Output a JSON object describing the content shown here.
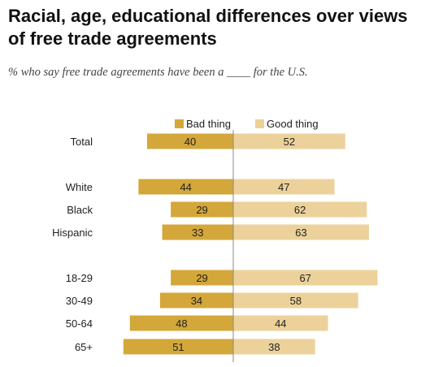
{
  "title": "Racial, age, educational differences over views of free trade agreements",
  "subtitle": "% who say free trade agreements have been a ____ for the U.S.",
  "colors": {
    "bad": "#d4a73a",
    "good": "#ecd29a",
    "axis": "#888888"
  },
  "chart_data": {
    "type": "bar",
    "orientation": "diverging-horizontal",
    "categories": [
      "Total",
      "White",
      "Black",
      "Hispanic",
      "18-29",
      "30-49",
      "50-64",
      "65+"
    ],
    "series": [
      {
        "name": "Bad thing",
        "values": [
          40,
          44,
          29,
          33,
          29,
          34,
          48,
          51
        ]
      },
      {
        "name": "Good thing",
        "values": [
          52,
          47,
          62,
          63,
          67,
          58,
          44,
          38
        ]
      }
    ],
    "legend_position": "top",
    "grid": false
  }
}
